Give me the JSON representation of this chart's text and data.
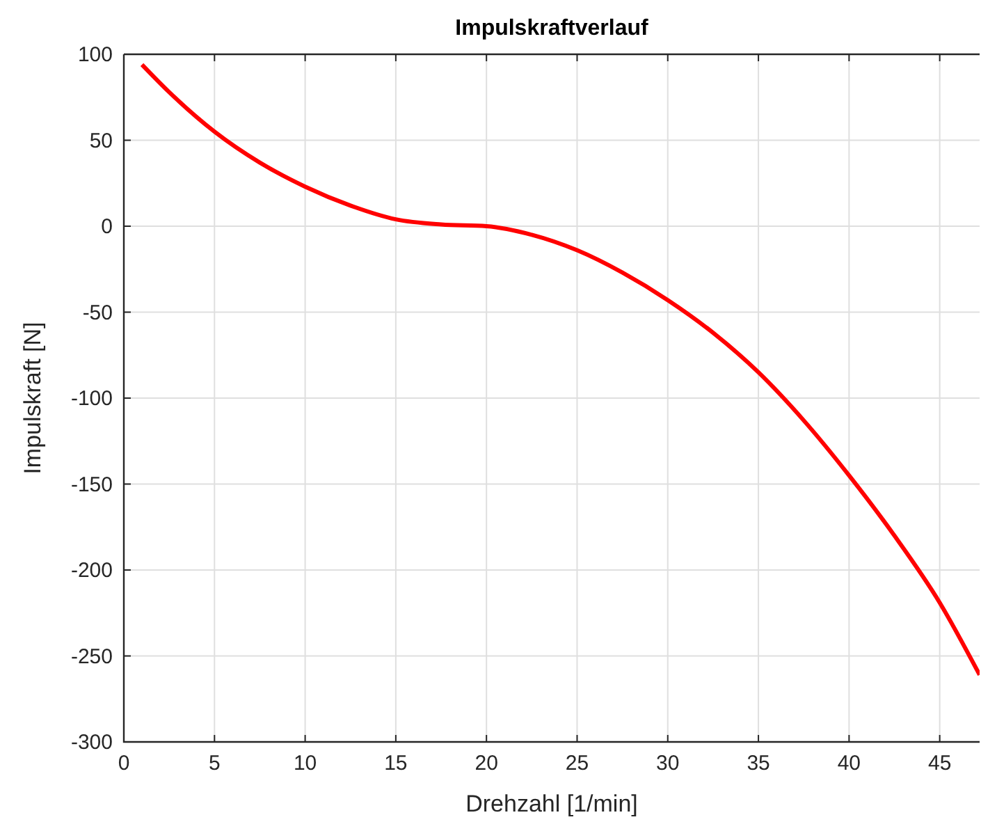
{
  "chart_data": {
    "type": "line",
    "title": "Impulskraftverlauf",
    "xlabel": "Drehzahl [1/min]",
    "ylabel": "Impulskraft [N]",
    "xlim": [
      0,
      47.2
    ],
    "xticks": [
      0,
      5,
      10,
      15,
      20,
      25,
      30,
      35,
      40,
      45
    ],
    "ylim": [
      -300,
      100
    ],
    "yticks": [
      -300,
      -250,
      -200,
      -150,
      -100,
      -50,
      0,
      50,
      100
    ],
    "grid": true,
    "series": [
      {
        "color": "#ff0000",
        "x": [
          1,
          2.5,
          5,
          7.5,
          10,
          12.5,
          15,
          17.5,
          20,
          22.5,
          25,
          27.5,
          30,
          32.5,
          35,
          37.5,
          40,
          42.5,
          45,
          47.2
        ],
        "values": [
          94,
          78,
          55,
          37,
          23,
          12,
          4,
          1,
          0,
          -5,
          -14,
          -27,
          -43,
          -62,
          -85,
          -113,
          -145,
          -180,
          -219,
          -261
        ]
      }
    ]
  }
}
